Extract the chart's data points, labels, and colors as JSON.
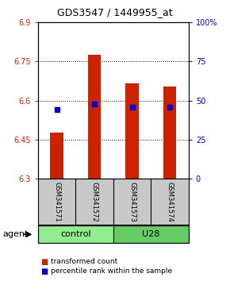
{
  "title": "GDS3547 / 1449955_at",
  "samples": [
    "GSM341571",
    "GSM341572",
    "GSM341573",
    "GSM341574"
  ],
  "group_colors": {
    "control": "#90EE90",
    "U28": "#66CC66"
  },
  "groups_info": [
    [
      "control",
      1,
      2
    ],
    [
      "U28",
      3,
      4
    ]
  ],
  "bar_bottom": 6.3,
  "red_values": [
    6.475,
    6.775,
    6.665,
    6.655
  ],
  "blue_values": [
    6.565,
    6.585,
    6.575,
    6.575
  ],
  "ylim_left": [
    6.3,
    6.9
  ],
  "ylim_right": [
    0,
    100
  ],
  "yticks_left": [
    6.3,
    6.45,
    6.6,
    6.75,
    6.9
  ],
  "yticks_right": [
    0,
    25,
    50,
    75,
    100
  ],
  "ytick_labels_right": [
    "0",
    "25",
    "50",
    "75",
    "100%"
  ],
  "grid_lines": [
    6.45,
    6.6,
    6.75
  ],
  "left_color": "#CC2200",
  "right_color": "#0000CC",
  "bar_width": 0.35,
  "bg_plot": "#FFFFFF",
  "legend_red": "transformed count",
  "legend_blue": "percentile rank within the sample",
  "agent_label": "agent",
  "sample_box_color": "#C8C8C8",
  "title_fontsize": 9,
  "tick_fontsize": 7,
  "sample_fontsize": 6,
  "legend_fontsize": 6.5
}
